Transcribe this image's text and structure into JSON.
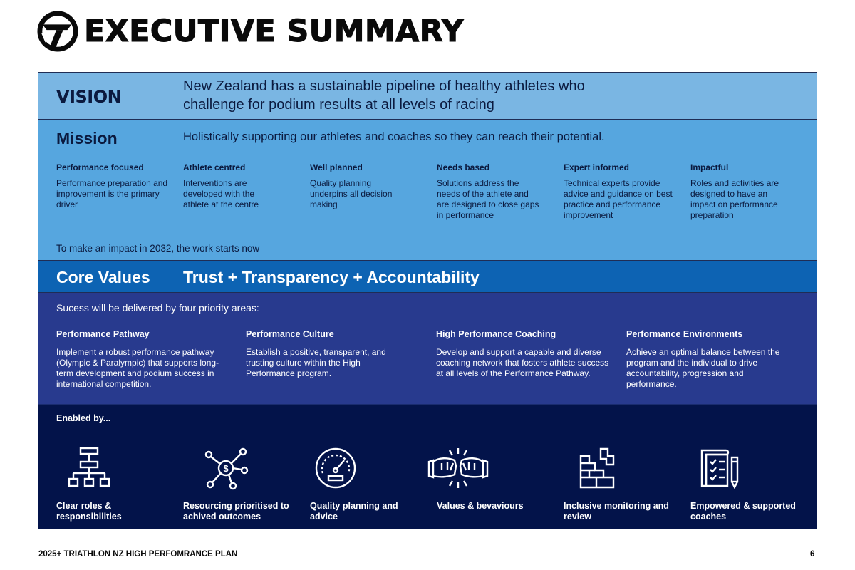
{
  "header": {
    "logo_icon": "triathlon-nz-logo-icon",
    "title": "EXECUTIVE SUMMARY"
  },
  "vision": {
    "label": "VISION",
    "text": "New Zealand has a sustainable pipeline of healthy athletes who challenge for podium results at all levels of racing"
  },
  "mission": {
    "label": "Mission",
    "text": "Holistically supporting our athletes and coaches so they can reach their potential.",
    "pillars": [
      {
        "title": "Performance focused",
        "desc": "Performance preparation and improvement is the primary driver"
      },
      {
        "title": "Athlete centred",
        "desc": "Interventions are developed with the athlete at the centre"
      },
      {
        "title": "Well planned",
        "desc": "Quality planning underpins all decision making"
      },
      {
        "title": "Needs based",
        "desc": "Solutions address the needs of the athlete and are designed to close gaps in performance"
      },
      {
        "title": "Expert informed",
        "desc": "Technical experts provide advice and guidance on best practice and performance improvement"
      },
      {
        "title": "Impactful",
        "desc": "Roles and activities are designed to have an impact on performance preparation"
      }
    ],
    "footnote": "To make an impact in 2032, the work starts now"
  },
  "core_values": {
    "label": "Core Values",
    "text": "Trust + Transparency + Accountability"
  },
  "priority": {
    "intro": "Sucess will be delivered by four priority areas:",
    "areas": [
      {
        "title": "Performance Pathway",
        "desc": "Implement a robust performance pathway (Olympic & Paralympic) that supports long-term development and podium success in international competition."
      },
      {
        "title": "Performance Culture",
        "desc": "Establish a positive, transparent, and trusting culture within the High Performance program."
      },
      {
        "title": "High Performance Coaching",
        "desc": "Develop and support a capable and diverse coaching network that fosters athlete success at all levels of the Performance Pathway."
      },
      {
        "title": "Performance Environments",
        "desc": "Achieve an optimal balance between the program and the individual to drive accountability, progression and performance."
      }
    ]
  },
  "enabled": {
    "label": "Enabled by...",
    "items": [
      {
        "icon": "org-chart-icon",
        "label": "Clear roles & responsibilities"
      },
      {
        "icon": "money-network-icon",
        "label": "Resourcing prioritised to achived outcomes"
      },
      {
        "icon": "speedometer-icon",
        "label": "Quality planning and advice"
      },
      {
        "icon": "fist-bump-icon",
        "label": "Values & bevaviours"
      },
      {
        "icon": "blocks-icon",
        "label": "Inclusive monitoring and review"
      },
      {
        "icon": "clipboard-pencil-icon",
        "label": "Empowered & supported coaches"
      }
    ]
  },
  "footer": {
    "doc_title": "2025+ TRIATHLON NZ HIGH PERFOMRANCE PLAN",
    "page_number": "6"
  }
}
